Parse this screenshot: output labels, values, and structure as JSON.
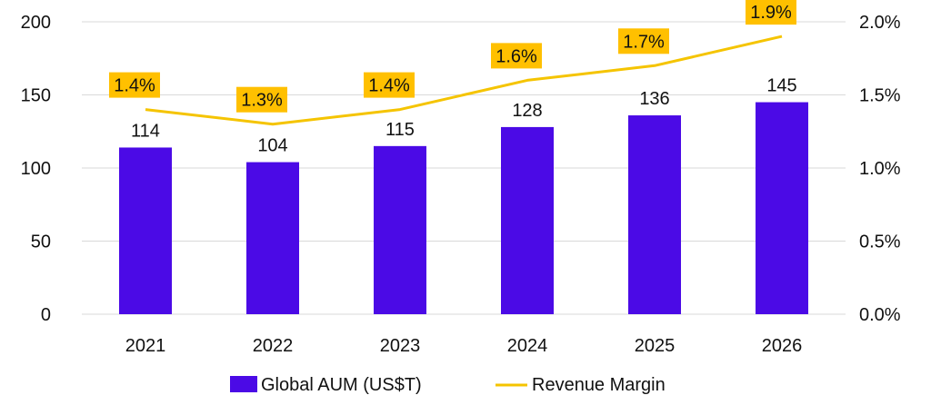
{
  "chart_data": {
    "type": "bar",
    "categories": [
      "2021",
      "2022",
      "2023",
      "2024",
      "2025",
      "2026"
    ],
    "series": [
      {
        "name": "Global AUM (US$T)",
        "type": "bar",
        "axis": "left",
        "values": [
          114,
          104,
          115,
          128,
          136,
          145
        ],
        "labels": [
          "114",
          "104",
          "115",
          "128",
          "136",
          "145"
        ],
        "color": "#4B0AE6"
      },
      {
        "name": "Revenue Margin",
        "type": "line",
        "axis": "right",
        "values": [
          1.4,
          1.3,
          1.4,
          1.6,
          1.7,
          1.9
        ],
        "labels": [
          "1.4%",
          "1.3%",
          "1.4%",
          "1.6%",
          "1.7%",
          "1.9%"
        ],
        "color": "#F5C400"
      }
    ],
    "left_axis": {
      "ylim": [
        0,
        200
      ],
      "ticks": [
        0,
        50,
        100,
        150,
        200
      ],
      "tick_labels": [
        "0",
        "50",
        "100",
        "150",
        "200"
      ]
    },
    "right_axis": {
      "ylim": [
        0.0,
        2.0
      ],
      "ticks": [
        0.0,
        0.5,
        1.0,
        1.5,
        2.0
      ],
      "tick_labels": [
        "0.0%",
        "0.5%",
        "1.0%",
        "1.5%",
        "2.0%"
      ]
    },
    "grid": true,
    "legend_position": "bottom",
    "label_box_color": "#FFC000",
    "title": "",
    "xlabel": "",
    "ylabel": ""
  }
}
